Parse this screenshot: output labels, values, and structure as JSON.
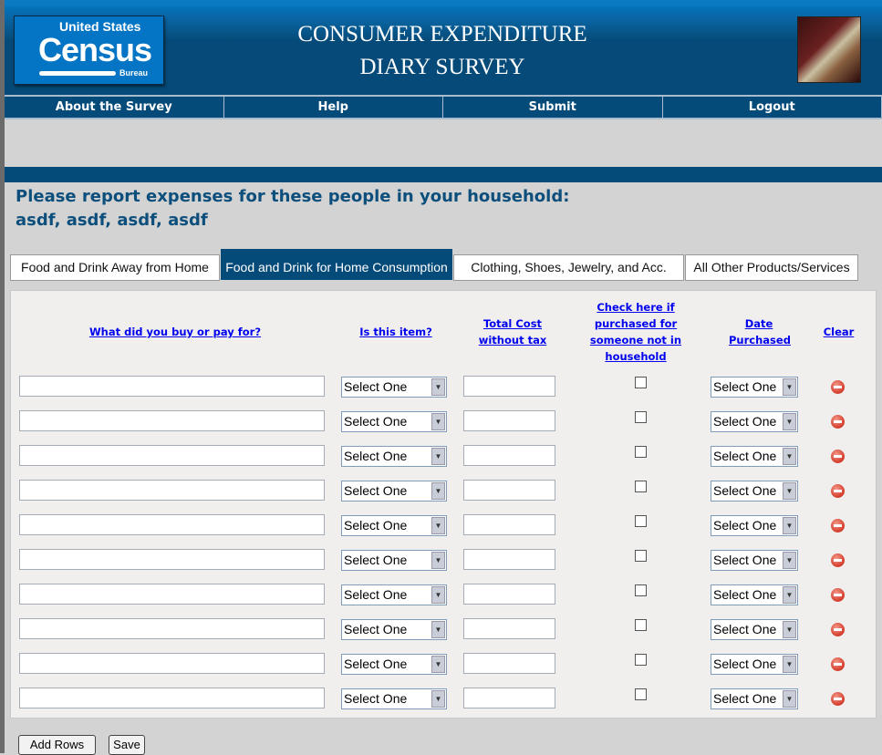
{
  "header": {
    "logo": {
      "line1": "United States",
      "line2": "Census",
      "line3": "Bureau"
    },
    "title_line1": "CONSUMER EXPENDITURE",
    "title_line2": "DIARY SURVEY"
  },
  "nav": [
    "About the Survey",
    "Help",
    "Submit",
    "Logout"
  ],
  "message": {
    "line1": "Please report expenses for these people in your household:",
    "line2": "asdf, asdf, asdf, asdf"
  },
  "tabs": [
    {
      "label": "Food and Drink Away from Home",
      "active": false
    },
    {
      "label": "Food and Drink for Home Consumption",
      "active": true
    },
    {
      "label": "Clothing, Shoes, Jewelry, and Acc.",
      "active": false
    },
    {
      "label": "All Other Products/Services",
      "active": false
    }
  ],
  "columns": {
    "item": "What did you buy or pay for?",
    "type": "Is this item?",
    "cost": "Total Cost without tax",
    "outside": "Check here if purchased for someone not in household",
    "date": "Date Purchased",
    "clear": "Clear"
  },
  "select_default": "Select One",
  "row_count": 10,
  "buttons": {
    "add_rows": "Add Rows",
    "save": "Save"
  },
  "colors": {
    "brand_blue": "#054b7a",
    "heading": "#0d4f7c",
    "link": "#0000ee"
  }
}
